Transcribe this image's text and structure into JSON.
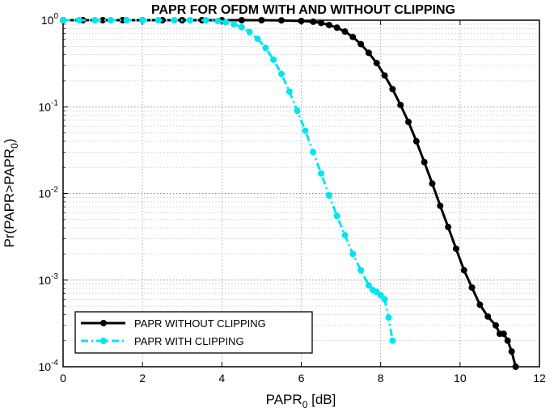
{
  "chart_data": {
    "type": "line",
    "title": "PAPR FOR OFDM WITH AND WITHOUT CLIPPING",
    "xlabel": {
      "base": "PAPR",
      "sub": "0",
      "suffix": " [dB]"
    },
    "ylabel": {
      "prefix": "Pr(PAPR>PAPR",
      "sub": "0",
      "suffix": ")"
    },
    "xlim": [
      0,
      12
    ],
    "ylim": [
      0.0001,
      1
    ],
    "yscale": "log",
    "grid": true,
    "legend_position": "bottom-left",
    "x_ticks": [
      "0",
      "2",
      "4",
      "6",
      "8",
      "10",
      "12"
    ],
    "y_ticks": [
      {
        "base": "10",
        "exp": "0"
      },
      {
        "base": "10",
        "exp": "-1"
      },
      {
        "base": "10",
        "exp": "-2"
      },
      {
        "base": "10",
        "exp": "-3"
      },
      {
        "base": "10",
        "exp": "-4"
      }
    ],
    "series": [
      {
        "name": "PAPR WITHOUT CLIPPING",
        "color": "#000000",
        "line_style": "solid",
        "marker": "circle",
        "x": [
          0,
          0.5,
          1.0,
          1.5,
          2.0,
          2.5,
          3.0,
          3.5,
          4.0,
          4.5,
          5.0,
          5.5,
          6.0,
          6.3,
          6.5,
          6.7,
          6.9,
          7.1,
          7.3,
          7.5,
          7.7,
          7.9,
          8.1,
          8.3,
          8.5,
          8.7,
          8.9,
          9.1,
          9.3,
          9.5,
          9.7,
          9.9,
          10.1,
          10.3,
          10.5,
          10.7,
          10.9,
          11.0,
          11.1,
          11.2,
          11.3,
          11.4
        ],
        "y": [
          1,
          1,
          1,
          1,
          1,
          1,
          1,
          1,
          1,
          1,
          1,
          0.995,
          0.98,
          0.96,
          0.93,
          0.88,
          0.82,
          0.74,
          0.64,
          0.53,
          0.42,
          0.32,
          0.23,
          0.16,
          0.105,
          0.067,
          0.04,
          0.023,
          0.013,
          0.0072,
          0.0041,
          0.0023,
          0.0013,
          0.00082,
          0.00052,
          0.00038,
          0.0003,
          0.00024,
          0.00024,
          0.0002,
          0.00015,
          0.0001
        ]
      },
      {
        "name": "PAPR WITH CLIPPING",
        "color": "#00e5ee",
        "line_style": "dashdot",
        "marker": "circle",
        "x": [
          0,
          0.4,
          0.8,
          1.2,
          1.6,
          2.0,
          2.4,
          2.8,
          3.2,
          3.6,
          3.9,
          4.1,
          4.3,
          4.5,
          4.7,
          4.9,
          5.1,
          5.3,
          5.5,
          5.7,
          5.9,
          6.1,
          6.3,
          6.5,
          6.7,
          6.9,
          7.1,
          7.3,
          7.5,
          7.7,
          7.8,
          7.9,
          8.0,
          8.1,
          8.2,
          8.3
        ],
        "y": [
          1,
          1,
          1,
          1,
          1,
          1,
          1,
          1,
          1,
          1,
          0.98,
          0.95,
          0.9,
          0.83,
          0.73,
          0.61,
          0.48,
          0.35,
          0.24,
          0.15,
          0.09,
          0.053,
          0.03,
          0.017,
          0.0095,
          0.0055,
          0.0033,
          0.002,
          0.0013,
          0.00087,
          0.00077,
          0.00073,
          0.00067,
          0.0006,
          0.00037,
          0.0002
        ]
      }
    ]
  }
}
